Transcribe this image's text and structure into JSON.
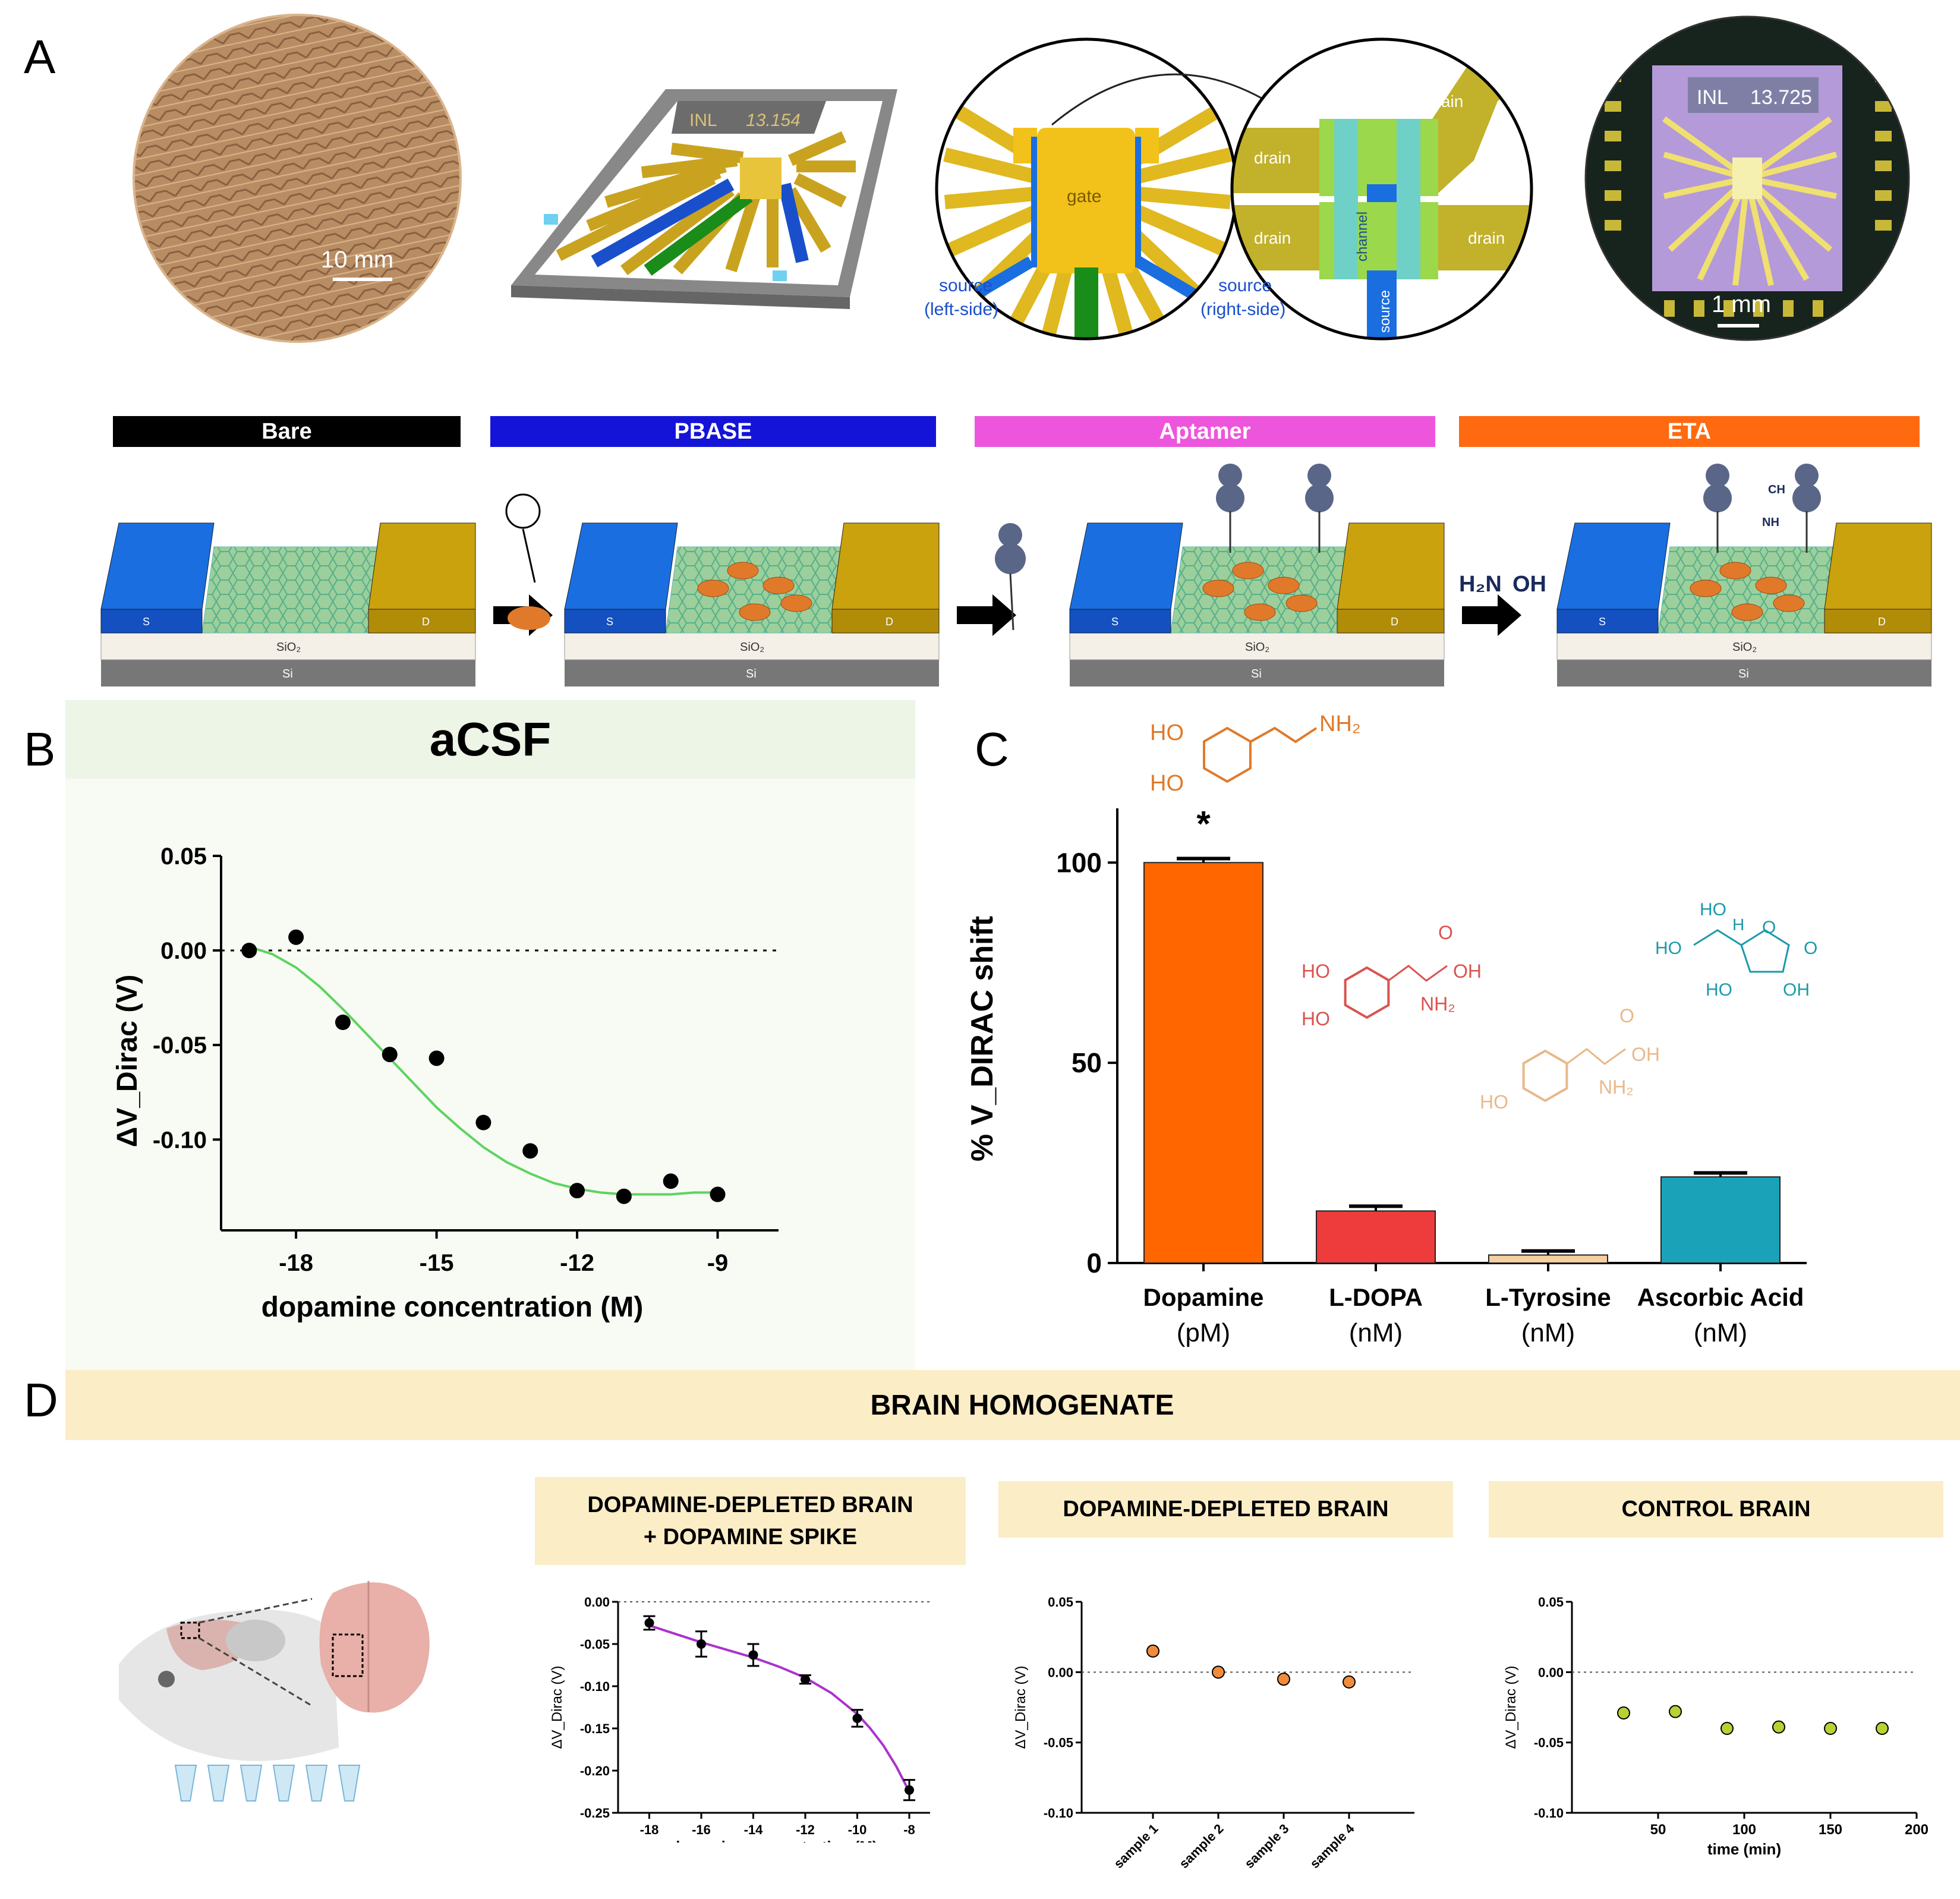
{
  "panels": {
    "A": {
      "letter": "A",
      "wafer": {
        "scale": "10 mm"
      },
      "chip": {
        "label": "INL",
        "number": "13.154"
      },
      "zoom": {
        "gate": "gate",
        "drain": "drain",
        "channel": "channel",
        "source": "source",
        "source_left": [
          "source",
          "(left-side)"
        ],
        "source_right": [
          "source",
          "(right-side)"
        ]
      },
      "photo": {
        "label": "INL",
        "number": "13.725",
        "scale": "1 mm"
      },
      "stages": [
        "Bare",
        "PBASE",
        "Aptamer",
        "ETA"
      ],
      "stage_colors": [
        "#000000",
        "#1414d9",
        "#ee55dd",
        "#ff6a10"
      ],
      "layers": {
        "sio2": "SiO₂",
        "si": "Si",
        "s": "S",
        "d": "D"
      },
      "eta_formula": {
        "h2n": "H₂N",
        "oh": "OH"
      },
      "aptamer_tail": {
        "ch": "CH",
        "nh": "NH"
      }
    },
    "B": {
      "letter": "B",
      "header": "aCSF",
      "header_bg": "#edf5e6"
    },
    "C": {
      "letter": "C",
      "significance": "*",
      "molecules": {
        "dopamine": [
          "HO",
          "HO",
          "NH₂"
        ],
        "ldopa": [
          "HO",
          "HO",
          "O",
          "OH",
          "NH₂"
        ],
        "tyrosine": [
          "HO",
          "O",
          "OH",
          "NH₂"
        ],
        "ascorbic": [
          "HO",
          "HO",
          "H",
          "O",
          "O",
          "HO",
          "OH"
        ]
      },
      "units": [
        "(pM)",
        "(nM)",
        "(nM)",
        "(nM)"
      ]
    },
    "D": {
      "letter": "D",
      "banner": "BRAIN HOMOGENATE",
      "banner_bg": "#fbedc6",
      "subtitles": {
        "spike": [
          "DOPAMINE-DEPLETED BRAIN",
          "+ DOPAMINE SPIKE"
        ],
        "depleted": "DOPAMINE-DEPLETED BRAIN",
        "control": "CONTROL BRAIN"
      }
    }
  },
  "chart_data": [
    {
      "id": "B",
      "type": "scatter",
      "title": "aCSF",
      "xlabel": "dopamine concentration (M)",
      "ylabel": "ΔV_Dirac (V)",
      "xlim": [
        -19.6,
        -7.7
      ],
      "ylim": [
        -0.148,
        0.05
      ],
      "xticks": [
        -18,
        -15,
        -12,
        -9
      ],
      "yticks": [
        0.05,
        0.0,
        -0.05,
        -0.1
      ],
      "ytick_labels": [
        "0.05",
        "0.00",
        "-0.05",
        "-0.10"
      ],
      "reference_line_y": 0,
      "series": [
        {
          "x": [
            -19,
            -18,
            -17,
            -16,
            -15,
            -14,
            -13,
            -12,
            -11,
            -10,
            -9
          ],
          "y": [
            0.0,
            0.007,
            -0.038,
            -0.055,
            -0.057,
            -0.091,
            -0.106,
            -0.127,
            -0.13,
            -0.122,
            -0.129
          ]
        }
      ],
      "fit": {
        "x": [
          -19,
          -18.5,
          -18,
          -17.5,
          -17,
          -16.5,
          -16,
          -15.5,
          -15,
          -14.5,
          -14,
          -13.5,
          -13,
          -12.5,
          -12,
          -11.5,
          -11,
          -10.5,
          -10,
          -9.5,
          -9
        ],
        "y": [
          0.002,
          -0.002,
          -0.009,
          -0.019,
          -0.031,
          -0.044,
          -0.057,
          -0.07,
          -0.083,
          -0.094,
          -0.104,
          -0.112,
          -0.118,
          -0.123,
          -0.126,
          -0.128,
          -0.129,
          -0.129,
          -0.129,
          -0.128,
          -0.128
        ],
        "color": "#5fd35f"
      }
    },
    {
      "id": "C",
      "type": "bar",
      "categories": [
        "Dopamine",
        "L-DOPA",
        "L-Tyrosine",
        "Ascorbic Acid"
      ],
      "values": [
        100,
        13,
        2,
        21.5
      ],
      "errors": [
        1,
        1.2,
        1,
        1
      ],
      "colors": [
        "#ff6600",
        "#ee3b3b",
        "#f5cfa0",
        "#1aa3b8"
      ],
      "ylabel": "% V_DIRAC shift",
      "ylim": [
        0,
        118
      ],
      "yticks": [
        0,
        50,
        100
      ]
    },
    {
      "id": "D1",
      "type": "line",
      "xlabel": "dopamine concentration (M)",
      "ylabel": "ΔV_Dirac (V)",
      "xlim": [
        -19.2,
        -7.2
      ],
      "ylim": [
        -0.25,
        0.0
      ],
      "xticks": [
        -18,
        -16,
        -14,
        -12,
        -10,
        -8
      ],
      "yticks": [
        0.0,
        -0.05,
        -0.1,
        -0.15,
        -0.2,
        -0.25
      ],
      "ytick_labels": [
        "0.00",
        "-0.05",
        "-0.10",
        "-0.15",
        "-0.20",
        "-0.25"
      ],
      "series": [
        {
          "x": [
            -18,
            -16,
            -14,
            -12,
            -10,
            -8
          ],
          "y": [
            -0.025,
            -0.05,
            -0.063,
            -0.092,
            -0.138,
            -0.223
          ],
          "err": [
            0.008,
            0.015,
            0.013,
            0.005,
            0.01,
            0.012
          ]
        }
      ],
      "fit": {
        "x": [
          -18,
          -17,
          -16,
          -15,
          -14,
          -13,
          -12,
          -11,
          -10,
          -9.5,
          -9,
          -8.5,
          -8
        ],
        "y": [
          -0.028,
          -0.038,
          -0.048,
          -0.057,
          -0.066,
          -0.077,
          -0.09,
          -0.108,
          -0.133,
          -0.15,
          -0.17,
          -0.195,
          -0.225
        ],
        "color": "#aa33cc"
      },
      "reference_line_y": 0
    },
    {
      "id": "D2",
      "type": "scatter",
      "ylabel": "ΔV_Dirac (V)",
      "categories": [
        "sample 1",
        "sample 2",
        "sample 3",
        "sample 4"
      ],
      "values": [
        0.015,
        0.0,
        -0.005,
        -0.007
      ],
      "ylim": [
        -0.1,
        0.05
      ],
      "yticks": [
        0.05,
        0.0,
        -0.05,
        -0.1
      ],
      "ytick_labels": [
        "0.05",
        "0.00",
        "-0.05",
        "-0.10"
      ],
      "point_color": "#f08c3c",
      "reference_line_y": 0
    },
    {
      "id": "D3",
      "type": "scatter",
      "xlabel": "time (min)",
      "ylabel": "ΔV_Dirac (V)",
      "x": [
        30,
        60,
        90,
        120,
        150,
        180
      ],
      "y": [
        -0.029,
        -0.028,
        -0.04,
        -0.039,
        -0.04,
        -0.04
      ],
      "xlim": [
        0,
        200
      ],
      "ylim": [
        -0.1,
        0.05
      ],
      "xticks": [
        50,
        100,
        150,
        200
      ],
      "yticks": [
        0.05,
        0.0,
        -0.05,
        -0.1
      ],
      "ytick_labels": [
        "0.05",
        "0.00",
        "-0.05",
        "-0.10"
      ],
      "point_color": "#b5d334",
      "reference_line_y": 0
    }
  ]
}
